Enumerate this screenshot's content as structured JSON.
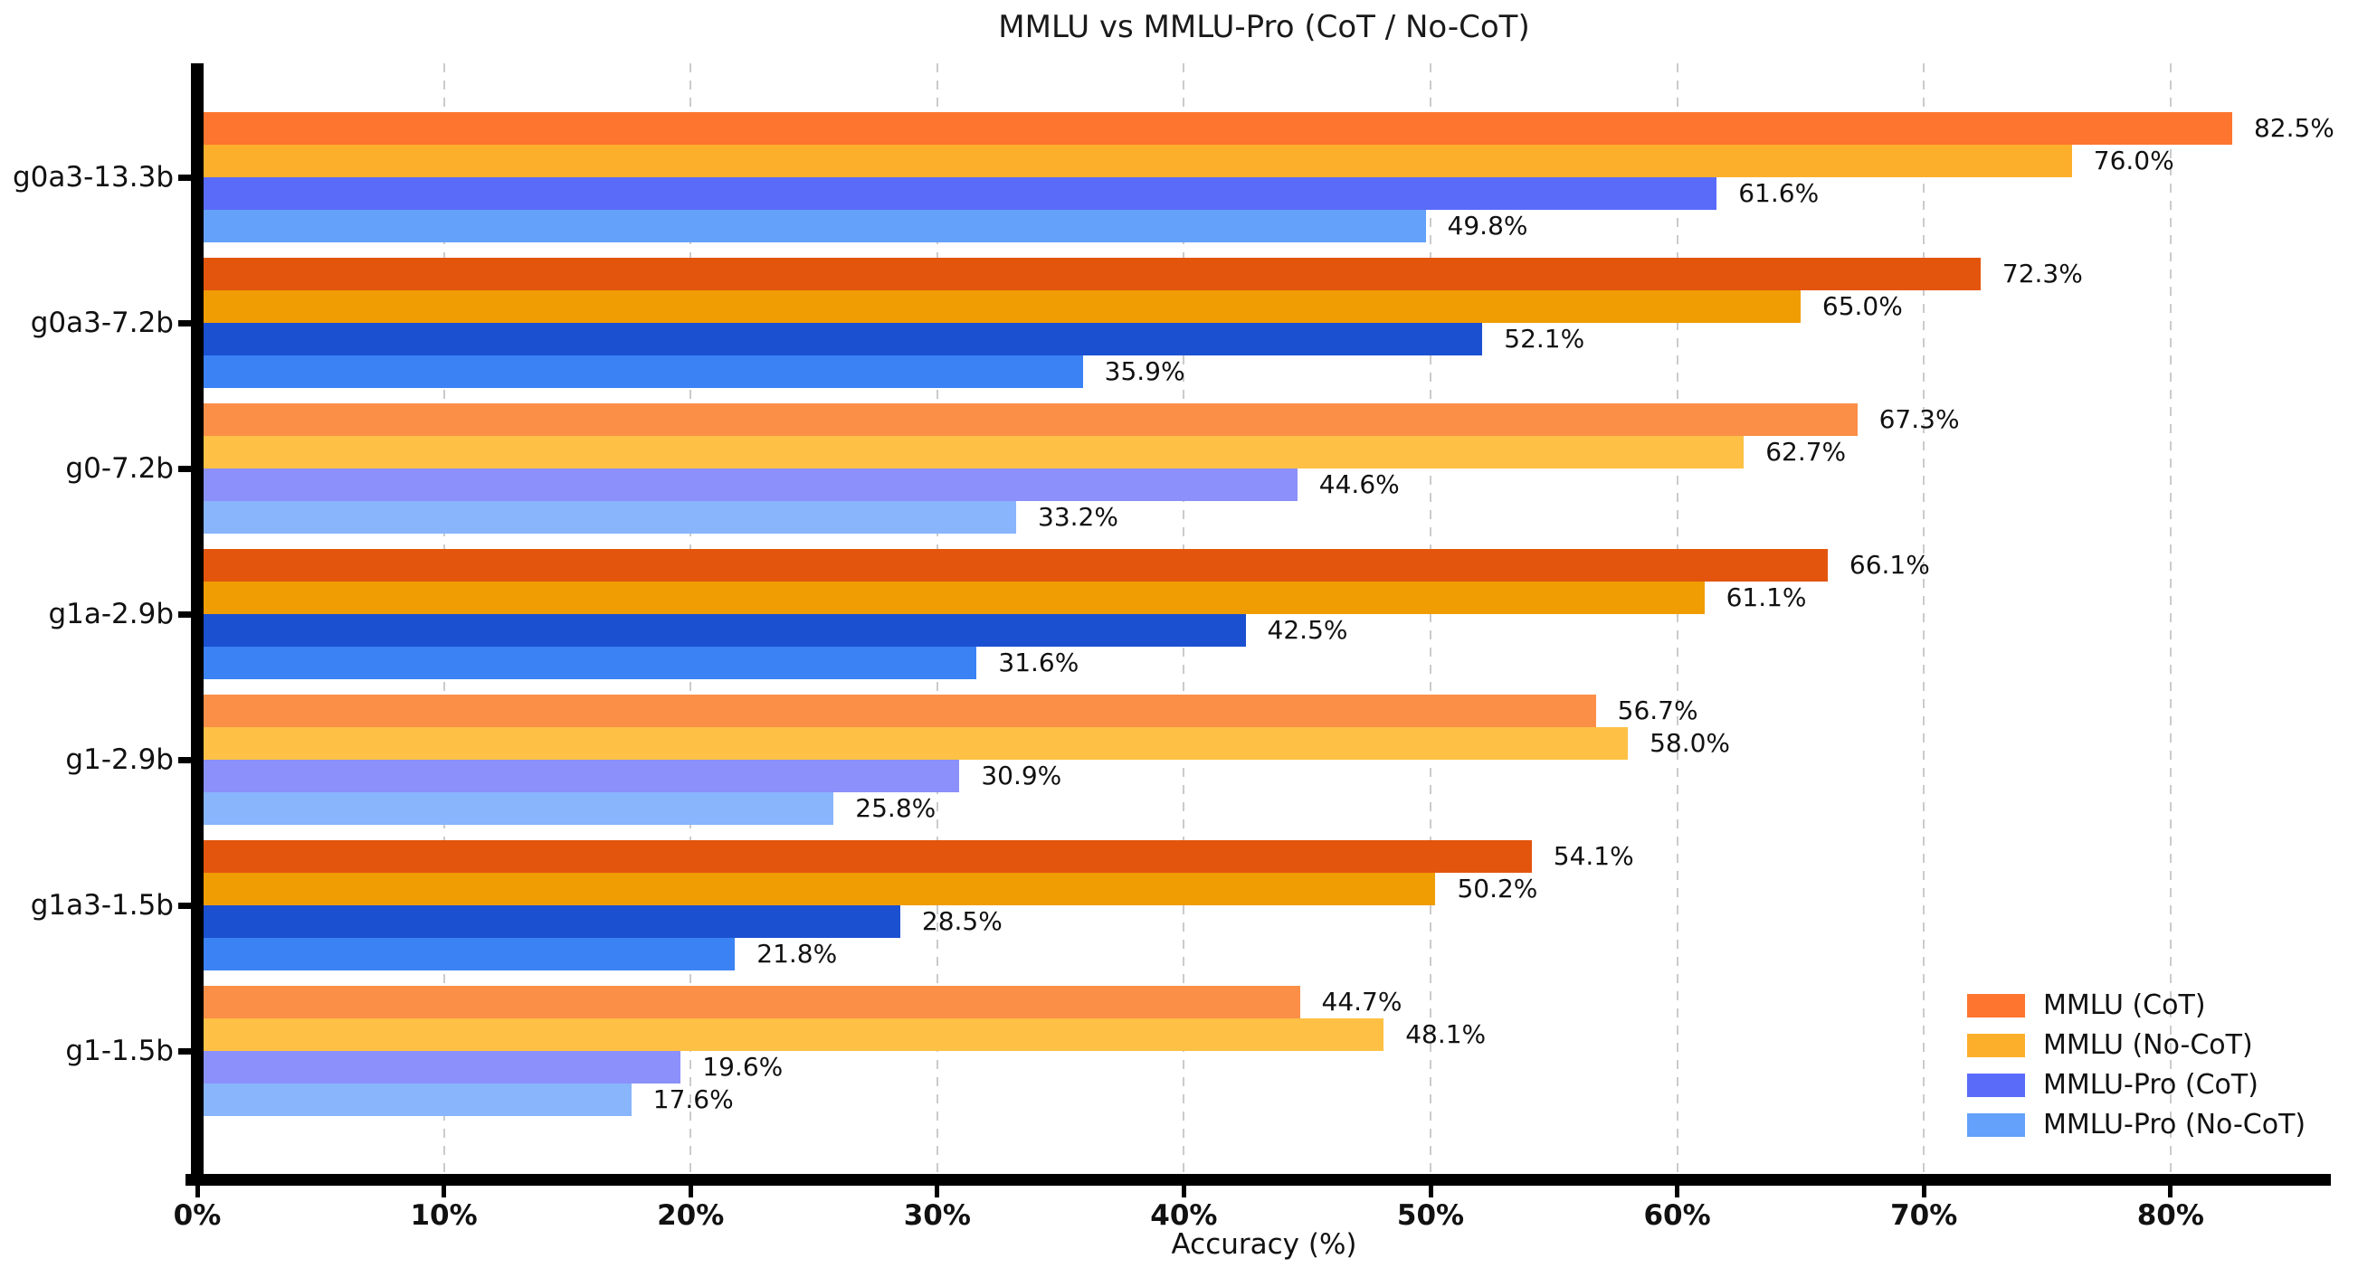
{
  "title": "MMLU vs MMLU-Pro (CoT / No-CoT)",
  "chart_data": {
    "type": "bar",
    "orientation": "horizontal",
    "title": "MMLU vs MMLU-Pro (CoT / No-CoT)",
    "xlabel": "Accuracy (%)",
    "ylabel": "",
    "categories": [
      "g0a3-13.3b",
      "g0a3-7.2b",
      "g0-7.2b",
      "g1a-2.9b",
      "g1-2.9b",
      "g1a3-1.5b",
      "g1-1.5b"
    ],
    "series": [
      {
        "name": "MMLU (CoT)",
        "values": [
          82.5,
          72.3,
          67.3,
          66.1,
          56.7,
          54.1,
          44.7
        ]
      },
      {
        "name": "MMLU (No-CoT)",
        "values": [
          76.0,
          65.0,
          62.7,
          61.1,
          58.0,
          50.2,
          48.1
        ]
      },
      {
        "name": "MMLU-Pro (CoT)",
        "values": [
          61.6,
          52.1,
          44.6,
          42.5,
          30.9,
          28.5,
          19.6
        ]
      },
      {
        "name": "MMLU-Pro (No-CoT)",
        "values": [
          49.8,
          35.9,
          33.2,
          31.6,
          25.8,
          21.8,
          17.6
        ]
      }
    ],
    "value_label_suffix": "%",
    "value_label_decimals": 1,
    "xlim": [
      0,
      86.5
    ],
    "xtick_step": 10,
    "xticks": [
      {
        "value": 0,
        "label": "0%"
      },
      {
        "value": 10,
        "label": "10%"
      },
      {
        "value": 20,
        "label": "20%"
      },
      {
        "value": 30,
        "label": "30%"
      },
      {
        "value": 40,
        "label": "40%"
      },
      {
        "value": 50,
        "label": "50%"
      },
      {
        "value": 60,
        "label": "60%"
      },
      {
        "value": 70,
        "label": "70%"
      },
      {
        "value": 80,
        "label": "80%"
      }
    ],
    "grid": "vertical-dashed",
    "gridline_color": "#cbcbcb",
    "spine_color": "#000000",
    "legend_position": "lower right",
    "legend_labels": [
      "MMLU (CoT)",
      "MMLU (No-CoT)",
      "MMLU-Pro (CoT)",
      "MMLU-Pro (No-CoT)"
    ],
    "palette": {
      "base": [
        "#fd752e",
        "#fcaf2b",
        "#5a6bfa",
        "#63a1fa"
      ],
      "dark": [
        "#e3550d",
        "#f09c03",
        "#1b50d1",
        "#3b82f4"
      ],
      "light": [
        "#fb8f48",
        "#fec145",
        "#8b90fa",
        "#88b5fc"
      ]
    },
    "row_shades": [
      "base",
      "dark",
      "light",
      "dark",
      "light",
      "dark",
      "light"
    ],
    "legend_colors": [
      "#fd752e",
      "#fcaf2b",
      "#5a6bfa",
      "#63a1fa"
    ]
  }
}
